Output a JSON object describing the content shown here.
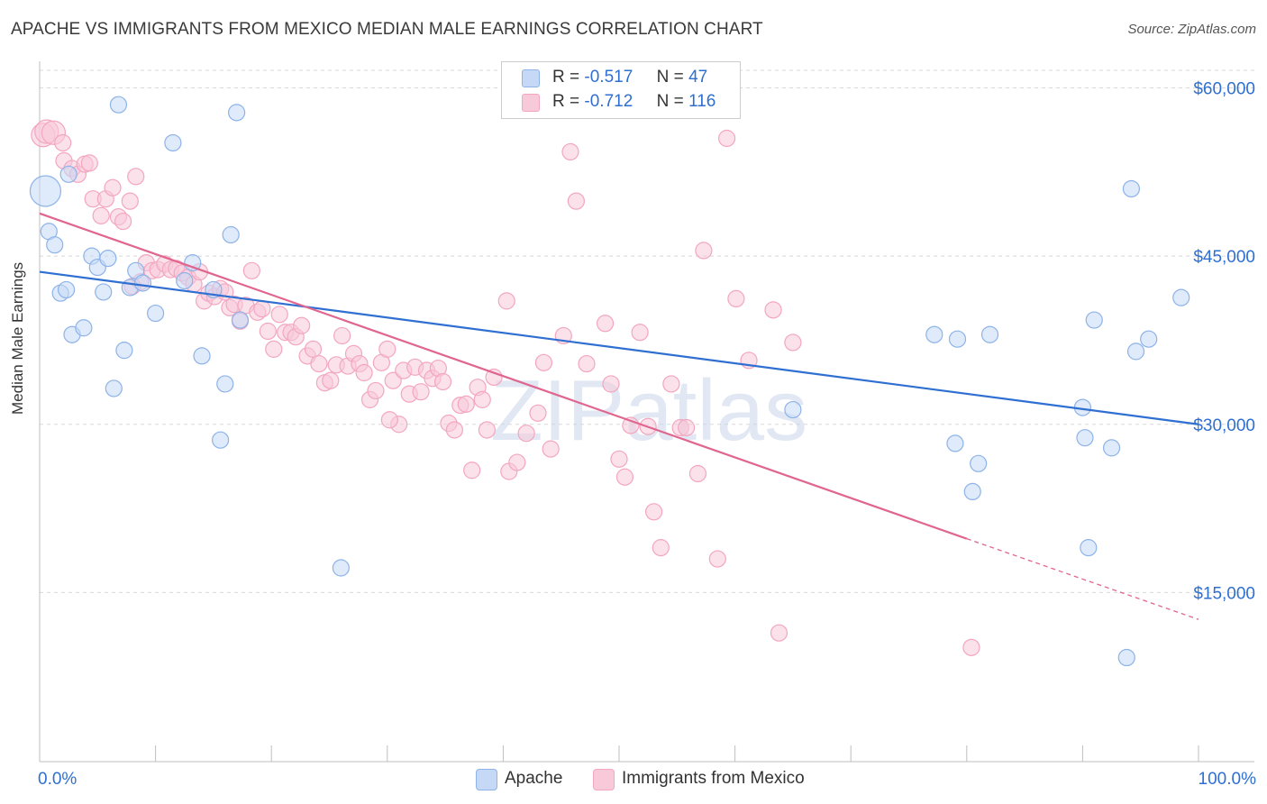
{
  "title": "APACHE VS IMMIGRANTS FROM MEXICO MEDIAN MALE EARNINGS CORRELATION CHART",
  "source": "Source: ZipAtlas.com",
  "watermark": "ZIPatlas",
  "legend": {
    "rows": [
      {
        "r_label": "R =",
        "r_value": "-0.517",
        "n_label": "N =",
        "n_value": "47"
      },
      {
        "r_label": "R =",
        "r_value": "-0.712",
        "n_label": "N =",
        "n_value": "116"
      }
    ]
  },
  "chart_data": {
    "type": "scatter",
    "title": "APACHE VS IMMIGRANTS FROM MEXICO MEDIAN MALE EARNINGS CORRELATION CHART",
    "xlabel": "",
    "ylabel": "Median Male Earnings",
    "xlim": [
      0,
      100
    ],
    "ylim": [
      0,
      61000
    ],
    "x_tick_labels": [
      "0.0%",
      "100.0%"
    ],
    "y_ticks": [
      15000,
      30000,
      45000,
      60000
    ],
    "y_tick_labels": [
      "$15,000",
      "$30,000",
      "$45,000",
      "$60,000"
    ],
    "grid": true,
    "legend_position": "bottom",
    "series": [
      {
        "name": "Apache",
        "color": "#8db3e8",
        "fill": "#c5d8f5",
        "r": -0.517,
        "n": 47,
        "trend": {
          "x0": 0,
          "y0": 43600,
          "x1": 100,
          "y1": 30000,
          "color": "#2f6fd1"
        },
        "points": [
          [
            0.5,
            50800
          ],
          [
            0.8,
            47200
          ],
          [
            1.3,
            46000
          ],
          [
            1.8,
            41700
          ],
          [
            2.3,
            42000
          ],
          [
            2.8,
            38000
          ],
          [
            3.8,
            38600
          ],
          [
            4.5,
            45000
          ],
          [
            5.0,
            44000
          ],
          [
            5.5,
            41800
          ],
          [
            5.9,
            44800
          ],
          [
            6.4,
            33200
          ],
          [
            6.8,
            58500
          ],
          [
            7.3,
            36600
          ],
          [
            7.8,
            42200
          ],
          [
            8.3,
            43700
          ],
          [
            8.9,
            42600
          ],
          [
            10.0,
            39900
          ],
          [
            11.5,
            55100
          ],
          [
            12.5,
            42800
          ],
          [
            13.2,
            44400
          ],
          [
            14.0,
            36100
          ],
          [
            15.0,
            42000
          ],
          [
            15.6,
            28600
          ],
          [
            16.0,
            33600
          ],
          [
            16.5,
            46900
          ],
          [
            17.0,
            57800
          ],
          [
            17.3,
            39300
          ],
          [
            26.0,
            17200
          ],
          [
            65.0,
            31300
          ],
          [
            77.2,
            38000
          ],
          [
            79.0,
            28300
          ],
          [
            79.2,
            37600
          ],
          [
            80.5,
            24000
          ],
          [
            81.0,
            26500
          ],
          [
            82.0,
            38000
          ],
          [
            90.0,
            31500
          ],
          [
            90.2,
            28800
          ],
          [
            90.5,
            19000
          ],
          [
            91.0,
            39300
          ],
          [
            92.5,
            27900
          ],
          [
            93.8,
            9200
          ],
          [
            94.2,
            51000
          ],
          [
            94.6,
            36500
          ],
          [
            95.7,
            37600
          ],
          [
            98.5,
            41300
          ],
          [
            2.5,
            52300
          ]
        ]
      },
      {
        "name": "Immigrants from Mexico",
        "color": "#f3a6bf",
        "fill": "#f8c9d8",
        "r": -0.712,
        "n": 116,
        "trend": {
          "x0": 0,
          "y0": 48800,
          "x1": 80,
          "y1": 19800,
          "dash_x1": 100,
          "dash_y1": 12600,
          "color": "#e0658f"
        },
        "points": [
          [
            0.3,
            55800
          ],
          [
            0.6,
            56100
          ],
          [
            1.2,
            56000
          ],
          [
            2.0,
            55100
          ],
          [
            2.1,
            53500
          ],
          [
            2.8,
            52800
          ],
          [
            3.3,
            52300
          ],
          [
            3.9,
            53200
          ],
          [
            4.3,
            53300
          ],
          [
            4.6,
            50100
          ],
          [
            5.3,
            48600
          ],
          [
            5.7,
            50100
          ],
          [
            6.3,
            51100
          ],
          [
            6.8,
            48500
          ],
          [
            7.2,
            48100
          ],
          [
            7.8,
            49900
          ],
          [
            8.3,
            52100
          ],
          [
            8.7,
            42700
          ],
          [
            9.2,
            44400
          ],
          [
            9.7,
            43700
          ],
          [
            10.2,
            43800
          ],
          [
            10.8,
            44300
          ],
          [
            11.3,
            43800
          ],
          [
            11.8,
            43900
          ],
          [
            12.3,
            43500
          ],
          [
            12.8,
            43100
          ],
          [
            13.3,
            42500
          ],
          [
            13.8,
            43600
          ],
          [
            14.2,
            41000
          ],
          [
            14.6,
            41700
          ],
          [
            15.1,
            41400
          ],
          [
            15.6,
            42100
          ],
          [
            16.0,
            41800
          ],
          [
            16.4,
            40400
          ],
          [
            16.8,
            40700
          ],
          [
            17.3,
            39200
          ],
          [
            17.8,
            40600
          ],
          [
            18.3,
            43700
          ],
          [
            18.8,
            40000
          ],
          [
            19.2,
            40300
          ],
          [
            19.7,
            38300
          ],
          [
            20.2,
            36700
          ],
          [
            20.7,
            39800
          ],
          [
            21.2,
            38200
          ],
          [
            21.7,
            38200
          ],
          [
            22.1,
            37800
          ],
          [
            22.6,
            38800
          ],
          [
            23.1,
            36100
          ],
          [
            23.6,
            36700
          ],
          [
            24.1,
            35400
          ],
          [
            24.6,
            33700
          ],
          [
            25.1,
            33900
          ],
          [
            25.6,
            35300
          ],
          [
            26.1,
            37900
          ],
          [
            26.6,
            35200
          ],
          [
            27.1,
            36300
          ],
          [
            27.6,
            35400
          ],
          [
            28.0,
            34600
          ],
          [
            28.5,
            32200
          ],
          [
            29.0,
            33000
          ],
          [
            29.5,
            35500
          ],
          [
            30.0,
            36700
          ],
          [
            30.5,
            33900
          ],
          [
            31.0,
            30000
          ],
          [
            31.4,
            34800
          ],
          [
            31.9,
            32700
          ],
          [
            32.4,
            35100
          ],
          [
            32.9,
            32900
          ],
          [
            33.4,
            34800
          ],
          [
            33.9,
            34100
          ],
          [
            34.4,
            35000
          ],
          [
            34.8,
            33800
          ],
          [
            35.3,
            30100
          ],
          [
            35.8,
            29500
          ],
          [
            36.3,
            31700
          ],
          [
            36.8,
            31800
          ],
          [
            37.3,
            25900
          ],
          [
            37.8,
            33300
          ],
          [
            38.2,
            32200
          ],
          [
            38.6,
            29500
          ],
          [
            39.2,
            34200
          ],
          [
            40.3,
            41000
          ],
          [
            40.5,
            25800
          ],
          [
            41.2,
            26600
          ],
          [
            42.0,
            29200
          ],
          [
            43.0,
            31000
          ],
          [
            43.5,
            35500
          ],
          [
            44.1,
            27800
          ],
          [
            45.2,
            37900
          ],
          [
            45.8,
            54300
          ],
          [
            46.3,
            49900
          ],
          [
            47.2,
            35400
          ],
          [
            48.8,
            39000
          ],
          [
            49.3,
            33600
          ],
          [
            50.0,
            26900
          ],
          [
            50.5,
            25300
          ],
          [
            51.0,
            29900
          ],
          [
            51.8,
            38200
          ],
          [
            52.5,
            29800
          ],
          [
            53.0,
            22200
          ],
          [
            53.6,
            19000
          ],
          [
            54.5,
            33600
          ],
          [
            55.3,
            29700
          ],
          [
            55.8,
            29700
          ],
          [
            56.8,
            25600
          ],
          [
            57.3,
            45500
          ],
          [
            58.5,
            18000
          ],
          [
            59.3,
            55500
          ],
          [
            60.1,
            41200
          ],
          [
            61.2,
            35700
          ],
          [
            63.3,
            40200
          ],
          [
            63.8,
            11400
          ],
          [
            65.0,
            37300
          ],
          [
            80.4,
            10100
          ],
          [
            8.0,
            42300
          ],
          [
            30.2,
            30400
          ]
        ]
      }
    ]
  },
  "bottom_legend": [
    {
      "label": "Apache",
      "color": "#c5d8f5",
      "border": "#8db3e8"
    },
    {
      "label": "Immigrants from Mexico",
      "color": "#f8c9d8",
      "border": "#f3a6bf"
    }
  ]
}
